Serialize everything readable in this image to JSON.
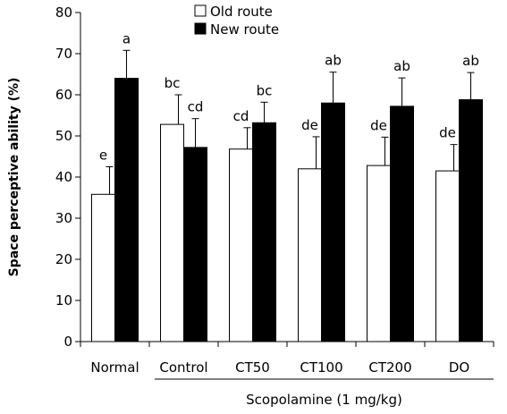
{
  "chart_data": {
    "type": "bar",
    "title": "",
    "xlabel": "",
    "ylabel": "Space perceptive ability (%)",
    "ylim": [
      0,
      80
    ],
    "yticks": [
      0,
      10,
      20,
      30,
      40,
      50,
      60,
      70,
      80
    ],
    "grid": false,
    "legend_position": "top-center",
    "categories": [
      "Normal",
      "Control",
      "CT50",
      "CT100",
      "CT200",
      "DO"
    ],
    "group_label": "Scopolamine (1 mg/kg)",
    "group_label_categories": [
      "Control",
      "CT50",
      "CT100",
      "CT200",
      "DO"
    ],
    "series": [
      {
        "name": "Old route",
        "fill": "#ffffff",
        "values": [
          35.8,
          52.8,
          46.8,
          42.0,
          42.8,
          41.5
        ],
        "errors": [
          6.7,
          7.2,
          5.2,
          7.8,
          6.9,
          6.4
        ],
        "labels": [
          "e",
          "bc",
          "cd",
          "de",
          "de",
          "de"
        ]
      },
      {
        "name": "New route",
        "fill": "#000000",
        "values": [
          64.0,
          47.2,
          53.2,
          58.0,
          57.2,
          58.8
        ],
        "errors": [
          6.8,
          7.0,
          5.0,
          7.5,
          6.9,
          6.6
        ],
        "labels": [
          "a",
          "cd",
          "bc",
          "ab",
          "ab",
          "ab"
        ]
      }
    ]
  }
}
